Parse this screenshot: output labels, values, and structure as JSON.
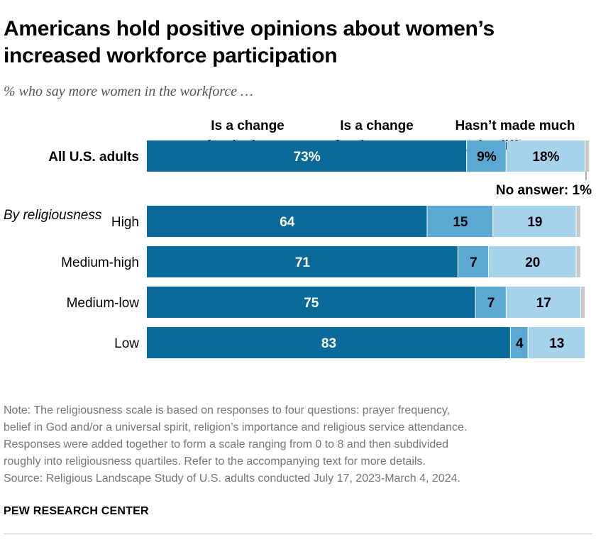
{
  "title": "Americans hold positive opinions about women’s increased workforce participation",
  "subtitle": "% who say more women in the workforce …",
  "chart_data": {
    "type": "bar",
    "orientation": "horizontal",
    "stacked": true,
    "ylim": [
      0,
      100
    ],
    "legend": [
      {
        "line1": "Is a change",
        "line2": "for the better"
      },
      {
        "line1": "Is a change",
        "line2": "for the worse"
      },
      {
        "line1": "Hasn’t made much",
        "line2": "of a difference"
      }
    ],
    "no_answer_label": "No answer: 1%",
    "group_label": "By religiousness",
    "categories": [
      "All U.S. adults",
      "High",
      "Medium-high",
      "Medium-low",
      "Low"
    ],
    "series": [
      {
        "name": "Is a change for the better",
        "color": "#0a6a9c",
        "values": [
          73,
          64,
          71,
          75,
          83
        ],
        "labels": [
          "73%",
          "64",
          "71",
          "75",
          "83"
        ]
      },
      {
        "name": "Is a change for the worse",
        "color": "#5ba8d3",
        "values": [
          9,
          15,
          7,
          7,
          4
        ],
        "labels": [
          "9%",
          "15",
          "7",
          "7",
          "4"
        ]
      },
      {
        "name": "Hasn’t made much of a difference",
        "color": "#a7d2ec",
        "values": [
          18,
          19,
          20,
          17,
          13
        ],
        "labels": [
          "18%",
          "19",
          "20",
          "17",
          "13"
        ]
      },
      {
        "name": "No answer",
        "color": "#c8c8c8",
        "values": [
          1,
          1,
          1,
          1,
          0
        ],
        "labels": [
          "",
          "",
          "",
          "",
          ""
        ]
      }
    ]
  },
  "note_lines": [
    "Note: The religiousness scale is based on responses to four questions: prayer frequency,",
    "belief in God and/or a universal spirit, religion’s importance and religious service attendance.",
    "Responses were added together to form a scale ranging from 0 to 8 and then subdivided",
    "roughly into religiousness quartiles. Refer to the accompanying text for more details."
  ],
  "source": "Source: Religious Landscape Study of U.S. adults conducted July 17, 2023-March 4, 2024.",
  "brand": "PEW RESEARCH CENTER"
}
